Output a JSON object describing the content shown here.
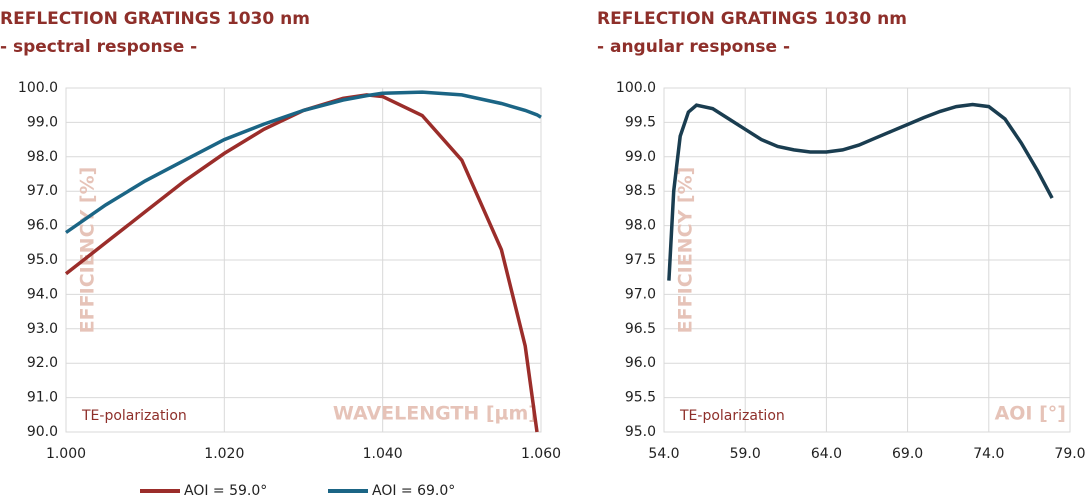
{
  "chart_data": [
    {
      "type": "line",
      "title": "REFLECTION GRATINGS 1030 nm",
      "subtitle": "- spectral response -",
      "x_label": "WAVELENGTH [µm]",
      "y_label": "EFFICIENCY [%]",
      "annotation": "TE-polarization",
      "x": [
        1.0,
        1.005,
        1.01,
        1.015,
        1.02,
        1.025,
        1.03,
        1.035,
        1.038,
        1.04,
        1.045,
        1.05,
        1.055,
        1.058,
        1.0595,
        1.06
      ],
      "series": [
        {
          "name": "AOI = 59.0°",
          "color": "#9b2d2a",
          "values": [
            94.6,
            95.5,
            96.4,
            97.3,
            98.1,
            98.8,
            99.35,
            99.7,
            99.8,
            99.75,
            99.2,
            97.9,
            95.3,
            92.5,
            90.0,
            null
          ]
        },
        {
          "name": "AOI = 69.0°",
          "color": "#1b6585",
          "values": [
            95.8,
            96.6,
            97.3,
            97.9,
            98.5,
            98.95,
            99.35,
            99.65,
            99.78,
            99.85,
            99.88,
            99.8,
            99.55,
            99.35,
            99.22,
            99.15
          ]
        }
      ],
      "xlim": [
        1.0,
        1.06
      ],
      "xticks": [
        {
          "value": 1.0,
          "label": "1.000"
        },
        {
          "value": 1.02,
          "label": "1.020"
        },
        {
          "value": 1.04,
          "label": "1.040"
        },
        {
          "value": 1.06,
          "label": "1.060"
        }
      ],
      "ylim": [
        90,
        100
      ],
      "yticks": [
        {
          "value": 90,
          "label": "90.0"
        },
        {
          "value": 91,
          "label": "91.0"
        },
        {
          "value": 92,
          "label": "92.0"
        },
        {
          "value": 93,
          "label": "93.0"
        },
        {
          "value": 94,
          "label": "94.0"
        },
        {
          "value": 95,
          "label": "95.0"
        },
        {
          "value": 96,
          "label": "96.0"
        },
        {
          "value": 97,
          "label": "97.0"
        },
        {
          "value": 98,
          "label": "98.0"
        },
        {
          "value": 99,
          "label": "99.0"
        },
        {
          "value": 100,
          "label": "100.0"
        }
      ],
      "grid": true,
      "legend": "bottom"
    },
    {
      "type": "line",
      "title": "REFLECTION GRATINGS 1030 nm",
      "subtitle": "- angular response -",
      "x_label": "AOI [°]",
      "y_label": "EFFICIENCY [%]",
      "annotation": "TE-polarization",
      "x": [
        54.3,
        54.6,
        55,
        55.5,
        56,
        57,
        58,
        59,
        60,
        61,
        62,
        63,
        64,
        65,
        66,
        67,
        68,
        69,
        70,
        71,
        72,
        73,
        74,
        75,
        76,
        77,
        77.9
      ],
      "series": [
        {
          "name": "AOI",
          "color": "#1a3d50",
          "values": [
            97.2,
            98.5,
            99.3,
            99.65,
            99.75,
            99.7,
            99.55,
            99.4,
            99.25,
            99.15,
            99.1,
            99.07,
            99.07,
            99.1,
            99.17,
            99.27,
            99.37,
            99.47,
            99.57,
            99.66,
            99.73,
            99.76,
            99.73,
            99.55,
            99.2,
            98.8,
            98.4
          ]
        }
      ],
      "xlim": [
        54,
        79
      ],
      "xticks": [
        {
          "value": 54,
          "label": "54.0"
        },
        {
          "value": 59,
          "label": "59.0"
        },
        {
          "value": 64,
          "label": "64.0"
        },
        {
          "value": 69,
          "label": "69.0"
        },
        {
          "value": 74,
          "label": "74.0"
        },
        {
          "value": 79,
          "label": "79.0"
        }
      ],
      "ylim": [
        95,
        100
      ],
      "yticks": [
        {
          "value": 95,
          "label": "95.0"
        },
        {
          "value": 95.5,
          "label": "95.5"
        },
        {
          "value": 96,
          "label": "96.0"
        },
        {
          "value": 96.5,
          "label": "96.5"
        },
        {
          "value": 97,
          "label": "97.0"
        },
        {
          "value": 97.5,
          "label": "97.5"
        },
        {
          "value": 98,
          "label": "98.0"
        },
        {
          "value": 98.5,
          "label": "98.5"
        },
        {
          "value": 99,
          "label": "99.0"
        },
        {
          "value": 99.5,
          "label": "99.5"
        },
        {
          "value": 100,
          "label": "100.0"
        }
      ],
      "grid": true
    }
  ]
}
